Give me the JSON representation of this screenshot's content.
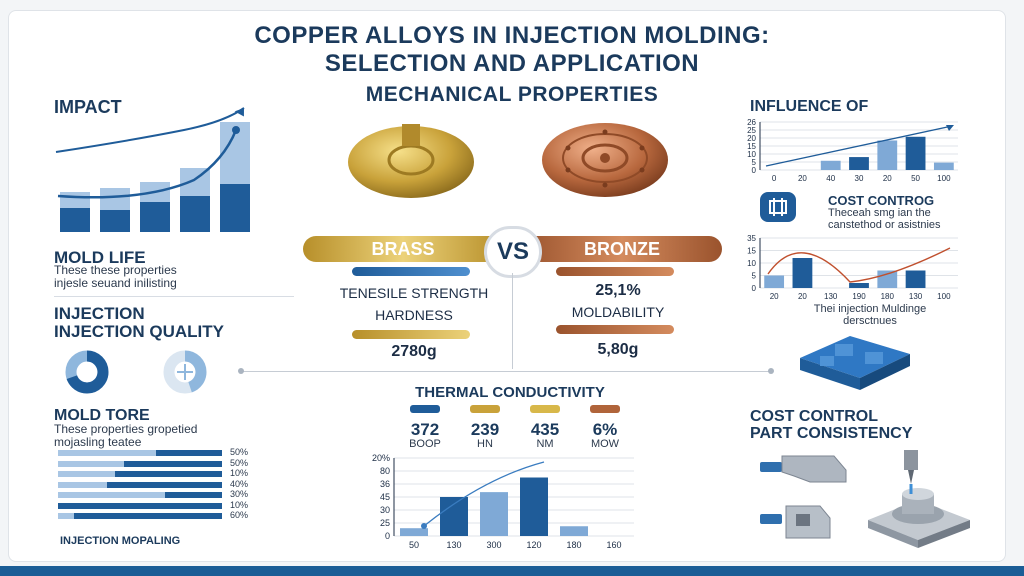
{
  "title": {
    "line1": "COPPER ALLOYS IN INJECTION MOLDING:",
    "line2": "SELECTION AND APPLICATION"
  },
  "subtitle": "MECHANICAL PROPERTIES",
  "left": {
    "impact": "IMPACT",
    "mold_life": "MOLD LIFE",
    "mold_life_text1": "These these properties",
    "mold_life_text2": "injesle seuand inilisting",
    "injection1": "INJECTION",
    "injection2": "INJECTION QUALITY",
    "mold_tore": "MOLD TORE",
    "mold_tore_text1": "These properties gropetied",
    "mold_tore_text2": "mojasling teatee",
    "bottom_label": "INJECTION MOPALING",
    "bar_percents": [
      "50%",
      "50%",
      "10%",
      "40%",
      "30%",
      "10%",
      "60%"
    ],
    "bar_fill": [
      0.4,
      0.6,
      0.65,
      0.7,
      0.35,
      1.0,
      0.9
    ]
  },
  "compare": {
    "brass": "BRASS",
    "vs": "VS",
    "bronze": "BRONZE",
    "tensile": "TENESILE STRENGTH",
    "hardness": "HARDNESS",
    "brass_value": "2780g",
    "bronze_pct": "25,1%",
    "moldability": "MOLDABILITY",
    "bronze_value": "5,80g"
  },
  "thermal": {
    "title": "THERMAL CONDUCTIVITY",
    "values": [
      "372",
      "239",
      "435",
      "6%"
    ],
    "units": [
      "BOOP",
      "HN",
      "NM",
      "MOW"
    ],
    "colors": [
      "#1f5c99",
      "#c9a23a",
      "#d8b84a",
      "#b0643a"
    ]
  },
  "right": {
    "influence": "INFLUENCE OF",
    "cost_control_box_title": "COST CONTROG",
    "cost_control_box_text1": "Theceah smg ian the",
    "cost_control_box_text2": "canstethod or asistnies",
    "chart2_caption1": "Thei injection Muldinge",
    "chart2_caption2": "dersctnues",
    "cost_control": "COST CONTROL",
    "part_consistency": "PART CONSISTENCY"
  },
  "chart_data": [
    {
      "type": "bar",
      "x": [
        "0",
        "20",
        "40",
        "30",
        "20",
        "50",
        "100"
      ],
      "yticks": [
        "0",
        "5",
        "10",
        "15",
        "20",
        "25",
        "26"
      ],
      "values": [
        0,
        0,
        5,
        7,
        16,
        18,
        4
      ],
      "trend": true
    },
    {
      "type": "bar",
      "x": [
        "20",
        "20",
        "130",
        "190",
        "180",
        "130",
        "100"
      ],
      "yticks": [
        "0",
        "5",
        "10",
        "15",
        "35"
      ],
      "values": [
        5,
        12,
        0,
        2,
        7,
        7,
        0
      ],
      "trend": true
    },
    {
      "type": "bar",
      "x": [
        "50",
        "130",
        "300",
        "120",
        "180",
        "160"
      ],
      "yticks": [
        "0",
        "25",
        "30",
        "45",
        "36",
        "80",
        "20%"
      ],
      "values": [
        8,
        40,
        45,
        60,
        10,
        0
      ],
      "trend": true
    }
  ],
  "colors": {
    "navy": "#1b3a5c",
    "blue": "#1f5c99",
    "lightblue": "#8fb7dd",
    "gold": "#c9a23a",
    "copper": "#b0643a"
  }
}
